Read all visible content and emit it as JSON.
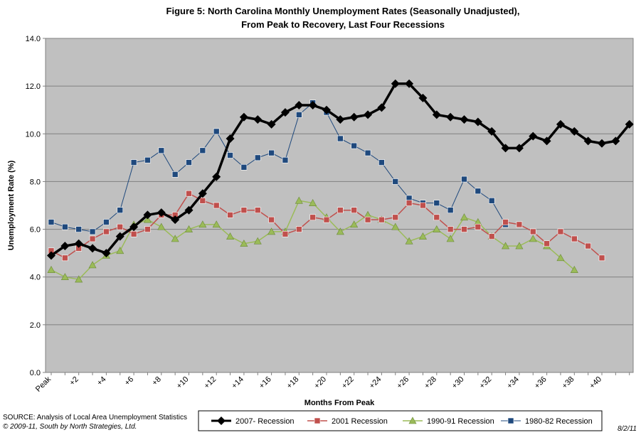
{
  "chart_data": {
    "type": "line",
    "title_lines": [
      "Figure 5: North Carolina Monthly Unemployment Rates (Seasonally Unadjusted),",
      "From Peak to Recovery,  Last Four Recessions"
    ],
    "xlabel": "Months From Peak",
    "ylabel": "Unemployment Rate (%)",
    "ylim": [
      0,
      14
    ],
    "yticks": [
      "0.0",
      "2.0",
      "4.0",
      "6.0",
      "8.0",
      "10.0",
      "12.0",
      "14.0"
    ],
    "yticks_values": [
      0,
      2,
      4,
      6,
      8,
      10,
      12,
      14
    ],
    "xlim": [
      0,
      44
    ],
    "xticks": [
      "Peak",
      "+2",
      "+4",
      "+6",
      "+8",
      "+10",
      "+12",
      "+14",
      "+16",
      "+18",
      "+20",
      "+22",
      "+24",
      "+26",
      "+28",
      "+30",
      "+32",
      "+34",
      "+36",
      "+38",
      "+40"
    ],
    "xticks_values": [
      0,
      2,
      4,
      6,
      8,
      10,
      12,
      14,
      16,
      18,
      20,
      22,
      24,
      26,
      28,
      30,
      32,
      34,
      36,
      38,
      40
    ],
    "grid": "horizontal",
    "legend_position": "bottom",
    "series": [
      {
        "name": "2007- Recession",
        "color": "#000000",
        "marker": "diamond",
        "x": [
          0,
          1,
          2,
          3,
          4,
          5,
          6,
          7,
          8,
          9,
          10,
          11,
          12,
          13,
          14,
          15,
          16,
          17,
          18,
          19,
          20,
          21,
          22,
          23,
          24,
          25,
          26,
          27,
          28,
          29,
          30,
          31,
          32,
          33,
          34,
          35,
          36,
          37,
          38,
          39,
          40,
          41,
          42
        ],
        "values": [
          4.9,
          5.3,
          5.4,
          5.2,
          5.0,
          5.7,
          6.1,
          6.6,
          6.7,
          6.4,
          6.8,
          7.5,
          8.2,
          9.8,
          10.7,
          10.6,
          10.4,
          10.9,
          11.2,
          11.2,
          11.0,
          10.6,
          10.7,
          10.8,
          11.1,
          12.1,
          12.1,
          11.5,
          10.8,
          10.7,
          10.6,
          10.5,
          10.1,
          9.4,
          9.4,
          9.9,
          9.7,
          10.4,
          10.1,
          9.7,
          9.6,
          9.7,
          10.4
        ]
      },
      {
        "name": "2001 Recession",
        "color": "#c0504d",
        "marker": "square",
        "x": [
          0,
          1,
          2,
          3,
          4,
          5,
          6,
          7,
          8,
          9,
          10,
          11,
          12,
          13,
          14,
          15,
          16,
          17,
          18,
          19,
          20,
          21,
          22,
          23,
          24,
          25,
          26,
          27,
          28,
          29,
          30,
          31,
          32,
          33,
          34,
          35,
          36,
          37,
          38,
          39,
          40
        ],
        "values": [
          5.1,
          4.8,
          5.2,
          5.6,
          5.9,
          6.1,
          5.8,
          6.0,
          6.6,
          6.6,
          7.5,
          7.2,
          7.0,
          6.6,
          6.8,
          6.8,
          6.4,
          5.8,
          6.0,
          6.5,
          6.4,
          6.8,
          6.8,
          6.4,
          6.4,
          6.5,
          7.1,
          7.0,
          6.5,
          6.0,
          6.0,
          6.1,
          5.7,
          6.3,
          6.2,
          5.9,
          5.4,
          5.9,
          5.6,
          5.3,
          4.8
        ]
      },
      {
        "name": "1990-91 Recession",
        "color": "#9bbb59",
        "marker": "triangle",
        "x": [
          0,
          1,
          2,
          3,
          4,
          5,
          6,
          7,
          8,
          9,
          10,
          11,
          12,
          13,
          14,
          15,
          16,
          17,
          18,
          19,
          20,
          21,
          22,
          23,
          24,
          25,
          26,
          27,
          28,
          29,
          30,
          31,
          32,
          33,
          34,
          35,
          36,
          37,
          38
        ],
        "values": [
          4.3,
          4.0,
          3.9,
          4.5,
          4.9,
          5.1,
          6.2,
          6.4,
          6.1,
          5.6,
          6.0,
          6.2,
          6.2,
          5.7,
          5.4,
          5.5,
          5.9,
          5.9,
          7.2,
          7.1,
          6.5,
          5.9,
          6.2,
          6.6,
          6.4,
          6.1,
          5.5,
          5.7,
          6.0,
          5.6,
          6.5,
          6.3,
          5.7,
          5.3,
          5.3,
          5.6,
          5.3,
          4.8,
          4.3
        ]
      },
      {
        "name": "1980-82 Recession",
        "color": "#1f497d",
        "marker": "square",
        "x": [
          0,
          1,
          2,
          3,
          4,
          5,
          6,
          7,
          8,
          9,
          10,
          11,
          12,
          13,
          14,
          15,
          16,
          17,
          18,
          19,
          20,
          21,
          22,
          23,
          24,
          25,
          26,
          27,
          28,
          29,
          30,
          31,
          32,
          33
        ],
        "values": [
          6.3,
          6.1,
          6.0,
          5.9,
          6.3,
          6.8,
          8.8,
          8.9,
          9.3,
          8.3,
          8.8,
          9.3,
          10.1,
          9.1,
          8.6,
          9.0,
          9.2,
          8.9,
          10.8,
          11.3,
          10.9,
          9.8,
          9.5,
          9.2,
          8.8,
          8.0,
          7.3,
          7.1,
          7.1,
          6.8,
          8.1,
          7.6,
          7.2,
          6.2
        ]
      }
    ]
  },
  "footer": {
    "source": "SOURCE:  Analysis of Local Area Unemployment Statistics",
    "copyright": "© 2009-11, South by North Strategies, Ltd.",
    "date": "8/2/11"
  }
}
